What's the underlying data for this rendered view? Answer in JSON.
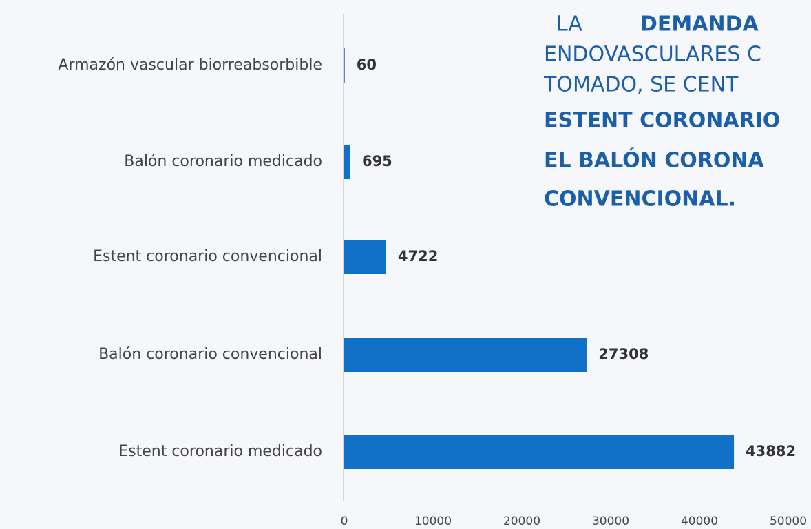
{
  "chart_data": {
    "type": "barh",
    "categories": [
      "Armazón vascular biorreabsorbible",
      "Balón coronario medicado",
      "Estent coronario convencional",
      "Balón coronario convencional",
      "Estent coronario medicado"
    ],
    "values": [
      60,
      695,
      4722,
      27308,
      43882
    ],
    "color": "#1170c8",
    "xlim": [
      0,
      50000
    ],
    "xticks": [
      0,
      10000,
      20000,
      30000,
      40000,
      50000
    ],
    "annotation": [
      "LA",
      "DEMANDA",
      "ENDOVASCULARES C",
      "TOMADO, SE CENT",
      "ESTENT CORONARIO",
      "EL BALÓN CORONA",
      "CONVENCIONAL."
    ]
  }
}
